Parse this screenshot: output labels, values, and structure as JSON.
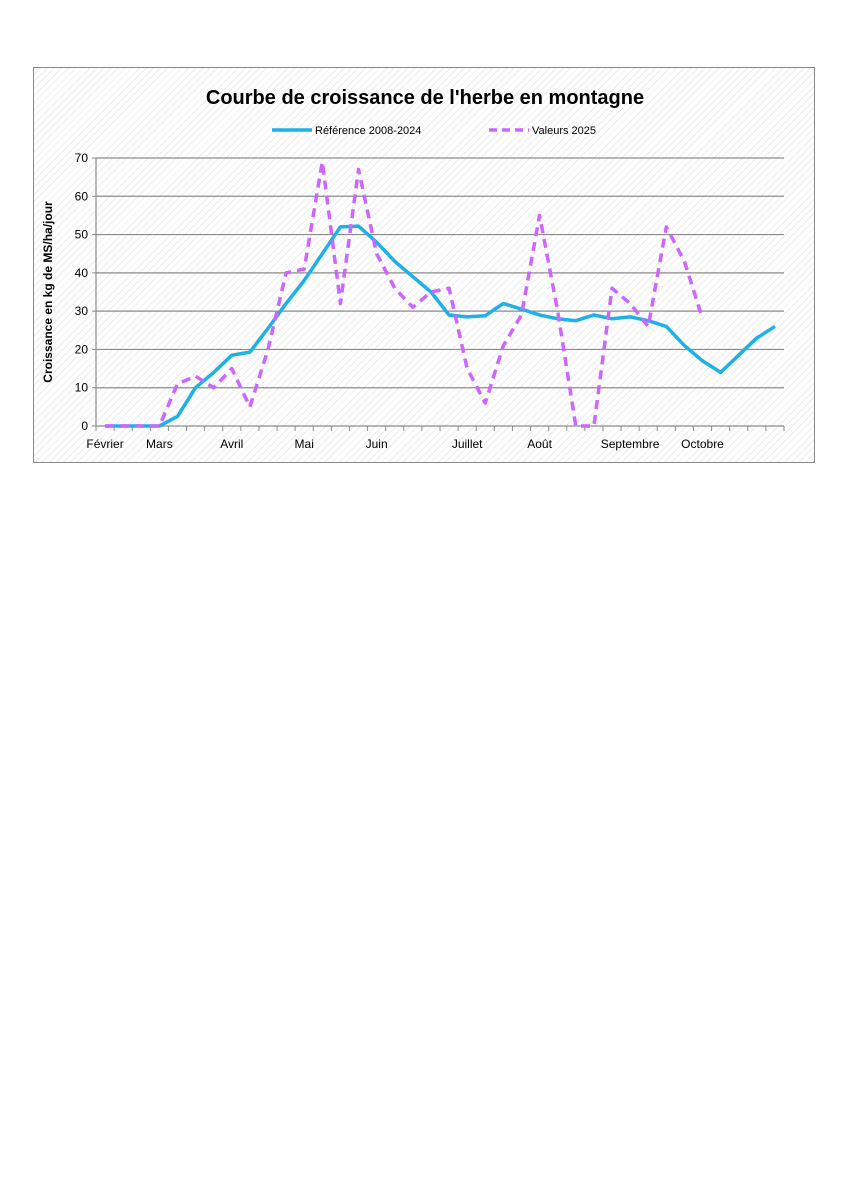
{
  "chart_data": {
    "type": "line",
    "title": "Courbe de croissance de l'herbe en montagne",
    "ylabel": "Croissance en kg de MS/ha/jour",
    "xlabel": "",
    "ylim": [
      0,
      70
    ],
    "yticks": [
      0,
      10,
      20,
      30,
      40,
      50,
      60,
      70
    ],
    "month_labels": [
      {
        "label": "Février",
        "week": 0
      },
      {
        "label": "Mars",
        "week": 3
      },
      {
        "label": "Avril",
        "week": 7
      },
      {
        "label": "Mai",
        "week": 11
      },
      {
        "label": "Juin",
        "week": 15
      },
      {
        "label": "Juillet",
        "week": 20
      },
      {
        "label": "Août",
        "week": 24
      },
      {
        "label": "Septembre",
        "week": 29
      },
      {
        "label": "Octobre",
        "week": 33
      }
    ],
    "n_weeks": 38,
    "legend_position": "top",
    "grid": true,
    "series": [
      {
        "name": "Référence 2008-2024",
        "color": "#1fb0e6",
        "dashed": false,
        "values": [
          0,
          0,
          0,
          0,
          2.5,
          10,
          14,
          18.5,
          19.3,
          25.5,
          32,
          38,
          45,
          52,
          52.2,
          48,
          43,
          39,
          35,
          29,
          28.5,
          28.8,
          32,
          30.5,
          29,
          28,
          27.5,
          29,
          28,
          28.5,
          27.5,
          26,
          21,
          17,
          14,
          18.5,
          23,
          26
        ]
      },
      {
        "name": "Valeurs 2025",
        "color": "#cc66ff",
        "dashed": true,
        "values": [
          0,
          0,
          0,
          0,
          11,
          13,
          10,
          15,
          5,
          20,
          40,
          41,
          69,
          32,
          67,
          45,
          36,
          31,
          35,
          36,
          15,
          6,
          21,
          29,
          55,
          30,
          0,
          0,
          36,
          32,
          26,
          52,
          43,
          28
        ]
      }
    ]
  }
}
